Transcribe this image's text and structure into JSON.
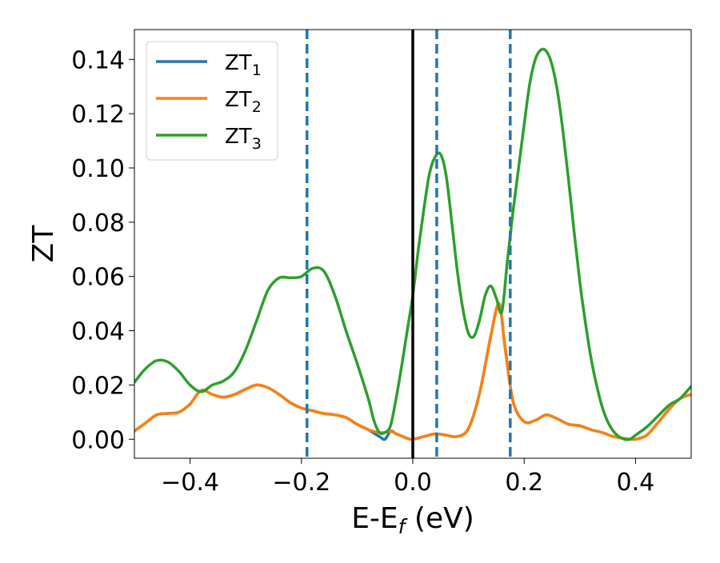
{
  "chart_data": {
    "type": "line",
    "xlabel": {
      "base": "E-E",
      "subscript": "f",
      "suffix": " (eV)"
    },
    "ylabel": "ZT",
    "xlim": [
      -0.5,
      0.5
    ],
    "ylim": [
      -0.007,
      0.151
    ],
    "xticks": [
      -0.4,
      -0.2,
      0.0,
      0.2,
      0.4
    ],
    "xtick_labels": [
      "−0.4",
      "−0.2",
      "0.0",
      "0.2",
      "0.4"
    ],
    "yticks": [
      0.0,
      0.02,
      0.04,
      0.06,
      0.08,
      0.1,
      0.12,
      0.14
    ],
    "ytick_labels": [
      "0.00",
      "0.02",
      "0.04",
      "0.06",
      "0.08",
      "0.10",
      "0.12",
      "0.14"
    ],
    "grid": false,
    "legend_position": "top-left",
    "vertical_lines": [
      {
        "x": 0.0,
        "style": "solid",
        "color": "#000000"
      },
      {
        "x": -0.19,
        "style": "dashed",
        "color": "#1f77b4"
      },
      {
        "x": 0.043,
        "style": "dashed",
        "color": "#1f77b4"
      },
      {
        "x": 0.175,
        "style": "dashed",
        "color": "#1f77b4"
      }
    ],
    "series": [
      {
        "name": "ZT",
        "subscript": "1",
        "color": "#1f77b4",
        "points": [
          [
            -0.5,
            0.003
          ],
          [
            -0.48,
            0.006
          ],
          [
            -0.46,
            0.009
          ],
          [
            -0.44,
            0.0095
          ],
          [
            -0.42,
            0.01
          ],
          [
            -0.4,
            0.013
          ],
          [
            -0.38,
            0.018
          ],
          [
            -0.36,
            0.0165
          ],
          [
            -0.34,
            0.0155
          ],
          [
            -0.32,
            0.0165
          ],
          [
            -0.3,
            0.0185
          ],
          [
            -0.28,
            0.02
          ],
          [
            -0.26,
            0.019
          ],
          [
            -0.24,
            0.0165
          ],
          [
            -0.22,
            0.0135
          ],
          [
            -0.2,
            0.0115
          ],
          [
            -0.18,
            0.0105
          ],
          [
            -0.16,
            0.0095
          ],
          [
            -0.14,
            0.009
          ],
          [
            -0.12,
            0.008
          ],
          [
            -0.1,
            0.0055
          ],
          [
            -0.08,
            0.0035
          ],
          [
            -0.06,
            0.001
          ],
          [
            -0.05,
            0.0
          ],
          [
            -0.04,
            0.003
          ],
          [
            -0.03,
            0.002
          ],
          [
            -0.02,
            0.0012
          ],
          [
            -0.01,
            0.0003
          ],
          [
            0.0,
            0.0
          ],
          [
            0.02,
            0.001
          ],
          [
            0.04,
            0.002
          ],
          [
            0.06,
            0.0015
          ],
          [
            0.08,
            0.001
          ],
          [
            0.1,
            0.004
          ],
          [
            0.12,
            0.017
          ],
          [
            0.14,
            0.038
          ],
          [
            0.155,
            0.05
          ],
          [
            0.165,
            0.035
          ],
          [
            0.18,
            0.014
          ],
          [
            0.2,
            0.0065
          ],
          [
            0.22,
            0.007
          ],
          [
            0.24,
            0.009
          ],
          [
            0.26,
            0.0075
          ],
          [
            0.28,
            0.0055
          ],
          [
            0.3,
            0.005
          ],
          [
            0.32,
            0.0035
          ],
          [
            0.34,
            0.0025
          ],
          [
            0.36,
            0.001
          ],
          [
            0.38,
            0.0003
          ],
          [
            0.4,
            0.0
          ],
          [
            0.42,
            0.0015
          ],
          [
            0.44,
            0.006
          ],
          [
            0.46,
            0.011
          ],
          [
            0.48,
            0.015
          ],
          [
            0.5,
            0.0165
          ]
        ]
      },
      {
        "name": "ZT",
        "subscript": "2",
        "color": "#ff7f0e",
        "points": [
          [
            -0.5,
            0.003
          ],
          [
            -0.48,
            0.006
          ],
          [
            -0.46,
            0.009
          ],
          [
            -0.44,
            0.0095
          ],
          [
            -0.42,
            0.01
          ],
          [
            -0.4,
            0.013
          ],
          [
            -0.38,
            0.018
          ],
          [
            -0.36,
            0.0165
          ],
          [
            -0.34,
            0.0155
          ],
          [
            -0.32,
            0.0165
          ],
          [
            -0.3,
            0.0185
          ],
          [
            -0.28,
            0.02
          ],
          [
            -0.26,
            0.019
          ],
          [
            -0.24,
            0.0165
          ],
          [
            -0.22,
            0.0135
          ],
          [
            -0.2,
            0.0115
          ],
          [
            -0.18,
            0.0105
          ],
          [
            -0.16,
            0.0095
          ],
          [
            -0.14,
            0.009
          ],
          [
            -0.12,
            0.008
          ],
          [
            -0.1,
            0.0055
          ],
          [
            -0.08,
            0.0035
          ],
          [
            -0.06,
            0.0025
          ],
          [
            -0.05,
            0.0025
          ],
          [
            -0.04,
            0.003
          ],
          [
            -0.03,
            0.002
          ],
          [
            -0.02,
            0.0012
          ],
          [
            -0.01,
            0.0003
          ],
          [
            0.0,
            0.0
          ],
          [
            0.02,
            0.001
          ],
          [
            0.04,
            0.002
          ],
          [
            0.06,
            0.0015
          ],
          [
            0.08,
            0.001
          ],
          [
            0.1,
            0.004
          ],
          [
            0.12,
            0.017
          ],
          [
            0.14,
            0.038
          ],
          [
            0.155,
            0.05
          ],
          [
            0.165,
            0.035
          ],
          [
            0.18,
            0.014
          ],
          [
            0.2,
            0.0065
          ],
          [
            0.22,
            0.007
          ],
          [
            0.24,
            0.009
          ],
          [
            0.26,
            0.0075
          ],
          [
            0.28,
            0.0055
          ],
          [
            0.3,
            0.005
          ],
          [
            0.32,
            0.0035
          ],
          [
            0.34,
            0.0025
          ],
          [
            0.36,
            0.001
          ],
          [
            0.38,
            0.0003
          ],
          [
            0.4,
            0.0
          ],
          [
            0.42,
            0.0015
          ],
          [
            0.44,
            0.006
          ],
          [
            0.46,
            0.011
          ],
          [
            0.48,
            0.015
          ],
          [
            0.5,
            0.0165
          ]
        ]
      },
      {
        "name": "ZT",
        "subscript": "3",
        "color": "#2ca02c",
        "points": [
          [
            -0.5,
            0.021
          ],
          [
            -0.48,
            0.026
          ],
          [
            -0.46,
            0.029
          ],
          [
            -0.44,
            0.0285
          ],
          [
            -0.42,
            0.025
          ],
          [
            -0.4,
            0.02
          ],
          [
            -0.38,
            0.0175
          ],
          [
            -0.36,
            0.02
          ],
          [
            -0.34,
            0.0215
          ],
          [
            -0.32,
            0.025
          ],
          [
            -0.3,
            0.033
          ],
          [
            -0.28,
            0.044
          ],
          [
            -0.26,
            0.055
          ],
          [
            -0.24,
            0.0595
          ],
          [
            -0.22,
            0.0595
          ],
          [
            -0.2,
            0.06
          ],
          [
            -0.18,
            0.063
          ],
          [
            -0.16,
            0.062
          ],
          [
            -0.14,
            0.053
          ],
          [
            -0.12,
            0.04
          ],
          [
            -0.1,
            0.028
          ],
          [
            -0.08,
            0.015
          ],
          [
            -0.07,
            0.007
          ],
          [
            -0.06,
            0.0025
          ],
          [
            -0.05,
            0.0025
          ],
          [
            -0.04,
            0.005
          ],
          [
            -0.03,
            0.015
          ],
          [
            -0.02,
            0.027
          ],
          [
            -0.01,
            0.04
          ],
          [
            0.0,
            0.053
          ],
          [
            0.01,
            0.07
          ],
          [
            0.02,
            0.085
          ],
          [
            0.03,
            0.098
          ],
          [
            0.04,
            0.104
          ],
          [
            0.05,
            0.105
          ],
          [
            0.06,
            0.097
          ],
          [
            0.07,
            0.08
          ],
          [
            0.08,
            0.062
          ],
          [
            0.09,
            0.048
          ],
          [
            0.1,
            0.039
          ],
          [
            0.11,
            0.038
          ],
          [
            0.12,
            0.044
          ],
          [
            0.13,
            0.053
          ],
          [
            0.14,
            0.0565
          ],
          [
            0.15,
            0.052
          ],
          [
            0.16,
            0.047
          ],
          [
            0.17,
            0.066
          ],
          [
            0.18,
            0.084
          ],
          [
            0.19,
            0.1
          ],
          [
            0.2,
            0.116
          ],
          [
            0.21,
            0.131
          ],
          [
            0.22,
            0.14
          ],
          [
            0.23,
            0.1435
          ],
          [
            0.24,
            0.143
          ],
          [
            0.25,
            0.138
          ],
          [
            0.26,
            0.128
          ],
          [
            0.27,
            0.113
          ],
          [
            0.28,
            0.095
          ],
          [
            0.29,
            0.076
          ],
          [
            0.3,
            0.058
          ],
          [
            0.31,
            0.043
          ],
          [
            0.32,
            0.03
          ],
          [
            0.33,
            0.02
          ],
          [
            0.34,
            0.012
          ],
          [
            0.35,
            0.0065
          ],
          [
            0.36,
            0.003
          ],
          [
            0.37,
            0.001
          ],
          [
            0.38,
            0.0
          ],
          [
            0.39,
            0.0
          ],
          [
            0.4,
            0.0015
          ],
          [
            0.42,
            0.0045
          ],
          [
            0.44,
            0.0085
          ],
          [
            0.46,
            0.0125
          ],
          [
            0.48,
            0.015
          ],
          [
            0.5,
            0.0195
          ]
        ]
      }
    ]
  }
}
